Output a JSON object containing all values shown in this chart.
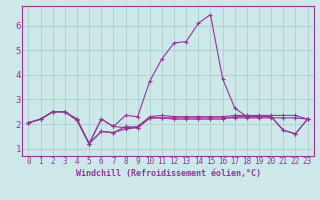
{
  "xlabel": "Windchill (Refroidissement éolien,°C)",
  "bg_color": "#cce8e8",
  "grid_color": "#aacccc",
  "line_color": "#993399",
  "xlim": [
    -0.5,
    23.5
  ],
  "ylim": [
    0.7,
    6.8
  ],
  "xticks": [
    0,
    1,
    2,
    3,
    4,
    5,
    6,
    7,
    8,
    9,
    10,
    11,
    12,
    13,
    14,
    15,
    16,
    17,
    18,
    19,
    20,
    21,
    22,
    23
  ],
  "yticks": [
    1,
    2,
    3,
    4,
    5,
    6
  ],
  "series": [
    [
      2.05,
      2.2,
      2.5,
      2.5,
      2.2,
      1.2,
      2.2,
      1.9,
      1.85,
      1.9,
      2.3,
      2.35,
      2.3,
      2.3,
      2.3,
      2.3,
      2.3,
      2.35,
      2.35,
      2.35,
      2.35,
      2.35,
      2.35,
      2.2
    ],
    [
      2.05,
      2.2,
      2.5,
      2.5,
      2.2,
      1.2,
      1.7,
      1.65,
      1.8,
      1.85,
      2.25,
      2.25,
      2.25,
      2.25,
      2.25,
      2.25,
      2.25,
      2.25,
      2.25,
      2.25,
      2.25,
      2.25,
      2.25,
      2.2
    ],
    [
      2.05,
      2.2,
      2.5,
      2.5,
      2.15,
      1.2,
      2.2,
      1.9,
      2.35,
      2.3,
      3.75,
      4.65,
      5.3,
      5.35,
      6.1,
      6.45,
      3.85,
      2.65,
      2.3,
      2.3,
      2.3,
      1.75,
      1.6,
      2.2
    ],
    [
      2.05,
      2.2,
      2.5,
      2.5,
      2.15,
      1.2,
      1.7,
      1.65,
      1.9,
      1.85,
      2.25,
      2.25,
      2.2,
      2.2,
      2.2,
      2.2,
      2.2,
      2.3,
      2.3,
      2.3,
      2.3,
      1.75,
      1.6,
      2.2
    ]
  ],
  "tick_fontsize": 5.5,
  "xlabel_fontsize": 6.0
}
